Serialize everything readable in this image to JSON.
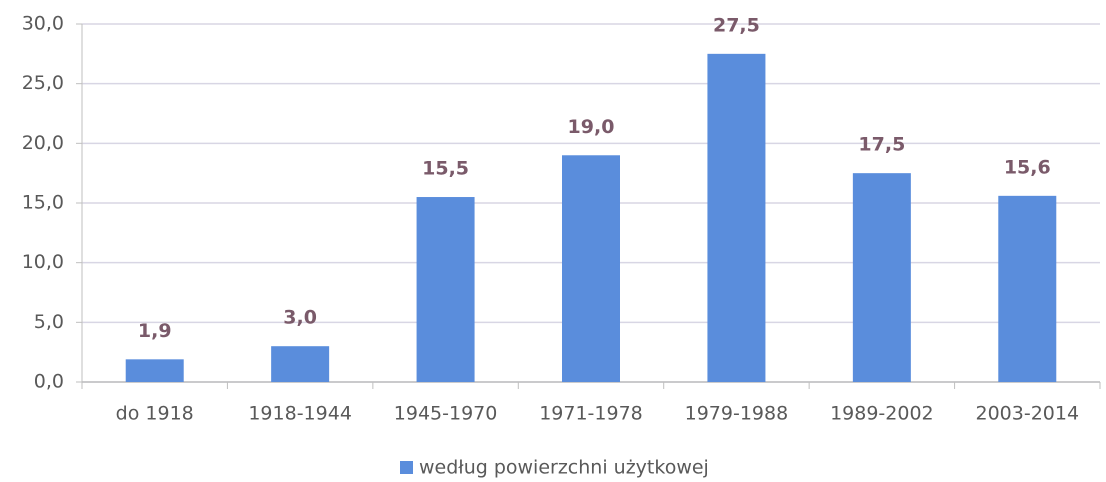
{
  "chart_data": {
    "type": "bar",
    "categories": [
      "do 1918",
      "1918-1944",
      "1945-1970",
      "1971-1978",
      "1979-1988",
      "1989-2002",
      "2003-2014"
    ],
    "series": [
      {
        "name": "według powierzchni użytkowej",
        "color": "#5a8ddc",
        "values": [
          1.9,
          3.0,
          15.5,
          19.0,
          27.5,
          17.5,
          15.6
        ],
        "value_labels": [
          "1,9",
          "3,0",
          "15,5",
          "19,0",
          "27,5",
          "17,5",
          "15,6"
        ]
      }
    ],
    "ylim": [
      0,
      30
    ],
    "yticks": [
      {
        "value": 0,
        "label": "0,0"
      },
      {
        "value": 5,
        "label": "5,0"
      },
      {
        "value": 10,
        "label": "10,0"
      },
      {
        "value": 15,
        "label": "15,0"
      },
      {
        "value": 20,
        "label": "20,0"
      },
      {
        "value": 25,
        "label": "25,0"
      },
      {
        "value": 30,
        "label": "30,0"
      }
    ],
    "grid": true,
    "legend": "bottom"
  }
}
